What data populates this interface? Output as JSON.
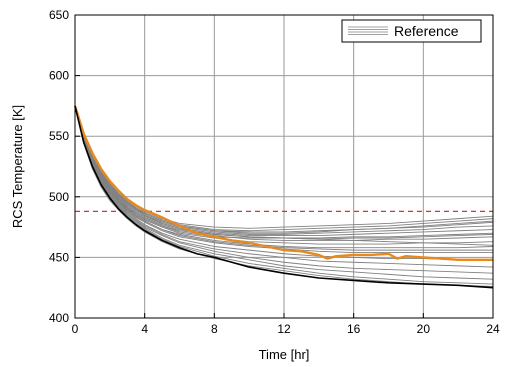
{
  "chart_data": {
    "type": "line",
    "xlabel": "Time [hr]",
    "ylabel": "RCS Temperature [K]",
    "xlim": [
      0,
      24
    ],
    "ylim": [
      400,
      650
    ],
    "xticks": [
      0,
      4,
      8,
      12,
      16,
      20,
      24
    ],
    "yticks": [
      400,
      450,
      500,
      550,
      600,
      650
    ],
    "grid": true,
    "legend": {
      "position": "top-right",
      "entries": [
        "Reference"
      ]
    },
    "colors": {
      "reference": "#808080",
      "highlight": "#e8891e",
      "lowest": "#000000",
      "threshold": "#e03030"
    },
    "threshold_line": {
      "y": 488,
      "style": "dashed"
    },
    "series": [
      {
        "name": "Reference",
        "x": [
          0,
          0.5,
          1,
          1.5,
          2,
          2.5,
          3,
          3.5,
          4,
          5,
          6,
          7,
          8,
          10,
          12,
          14,
          16,
          18,
          20,
          22,
          24
        ],
        "y": [
          575,
          550,
          533,
          520,
          509,
          501,
          495,
          490,
          485,
          478,
          474,
          471,
          469,
          467,
          466,
          465,
          464,
          463,
          462,
          461,
          460
        ]
      },
      {
        "x": [
          0,
          0.5,
          1,
          1.5,
          2,
          2.5,
          3,
          3.5,
          4,
          5,
          6,
          8,
          10,
          12,
          14,
          16,
          18,
          20,
          22,
          24
        ],
        "y": [
          575,
          550,
          533,
          521,
          511,
          503,
          497,
          492,
          488,
          482,
          478,
          475,
          474,
          475,
          476,
          477,
          478,
          480,
          482,
          484
        ]
      },
      {
        "x": [
          0,
          0.5,
          1,
          1.5,
          2,
          2.5,
          3,
          3.5,
          4,
          5,
          6,
          8,
          10,
          12,
          14,
          16,
          18,
          20,
          22,
          24
        ],
        "y": [
          575,
          550,
          533,
          520,
          510,
          502,
          496,
          491,
          487,
          481,
          477,
          473,
          472,
          473,
          474,
          475,
          476,
          478,
          480,
          482
        ]
      },
      {
        "x": [
          0,
          0.5,
          1,
          1.5,
          2,
          2.5,
          3,
          3.5,
          4,
          5,
          6,
          8,
          10,
          12,
          14,
          16,
          18,
          20,
          22,
          24
        ],
        "y": [
          575,
          549,
          532,
          519,
          509,
          501,
          495,
          490,
          486,
          480,
          476,
          472,
          471,
          471,
          472,
          473,
          474,
          475,
          477,
          479
        ]
      },
      {
        "x": [
          0,
          0.5,
          1,
          1.5,
          2,
          2.5,
          3,
          3.5,
          4,
          5,
          6,
          8,
          10,
          12,
          14,
          16,
          18,
          20,
          22,
          24
        ],
        "y": [
          575,
          549,
          532,
          519,
          508,
          500,
          494,
          489,
          485,
          479,
          475,
          471,
          469,
          469,
          470,
          471,
          472,
          473,
          475,
          476
        ]
      },
      {
        "x": [
          0,
          0.5,
          1,
          1.5,
          2,
          2.5,
          3,
          3.5,
          4,
          5,
          6,
          8,
          10,
          12,
          14,
          16,
          18,
          20,
          22,
          24
        ],
        "y": [
          575,
          549,
          531,
          518,
          507,
          499,
          493,
          488,
          484,
          478,
          474,
          470,
          468,
          468,
          468,
          469,
          470,
          471,
          472,
          473
        ]
      },
      {
        "x": [
          0,
          0.5,
          1,
          1.5,
          2,
          2.5,
          3,
          3.5,
          4,
          5,
          6,
          8,
          10,
          12,
          14,
          16,
          18,
          20,
          22,
          24
        ],
        "y": [
          575,
          548,
          531,
          517,
          507,
          499,
          492,
          487,
          483,
          477,
          473,
          469,
          467,
          466,
          466,
          467,
          467,
          468,
          469,
          470
        ]
      },
      {
        "x": [
          0,
          0.5,
          1,
          1.5,
          2,
          2.5,
          3,
          3.5,
          4,
          5,
          6,
          8,
          10,
          12,
          14,
          16,
          18,
          20,
          22,
          24
        ],
        "y": [
          575,
          548,
          530,
          517,
          506,
          498,
          491,
          486,
          482,
          476,
          472,
          468,
          465,
          464,
          464,
          464,
          465,
          465,
          466,
          467
        ]
      },
      {
        "x": [
          0,
          0.5,
          1,
          1.5,
          2,
          2.5,
          3,
          3.5,
          4,
          5,
          6,
          8,
          10,
          12,
          14,
          16,
          18,
          20,
          22,
          24
        ],
        "y": [
          575,
          548,
          530,
          516,
          505,
          497,
          490,
          485,
          481,
          475,
          470,
          466,
          463,
          462,
          461,
          461,
          461,
          462,
          462,
          463
        ]
      },
      {
        "x": [
          0,
          0.5,
          1,
          1.5,
          2,
          2.5,
          3,
          3.5,
          4,
          5,
          6,
          8,
          10,
          12,
          14,
          16,
          18,
          20,
          22,
          24
        ],
        "y": [
          575,
          547,
          529,
          515,
          504,
          496,
          489,
          484,
          480,
          473,
          469,
          464,
          461,
          459,
          458,
          458,
          458,
          458,
          458,
          459
        ]
      },
      {
        "x": [
          0,
          0.5,
          1,
          1.5,
          2,
          2.5,
          3,
          3.5,
          4,
          5,
          6,
          8,
          10,
          12,
          14,
          16,
          18,
          20,
          22,
          24
        ],
        "y": [
          575,
          547,
          528,
          514,
          503,
          495,
          488,
          483,
          479,
          472,
          467,
          462,
          459,
          457,
          455,
          454,
          454,
          454,
          454,
          454
        ]
      },
      {
        "x": [
          0,
          0.5,
          1,
          1.5,
          2,
          2.5,
          3,
          3.5,
          4,
          5,
          6,
          8,
          10,
          12,
          14,
          16,
          18,
          20,
          22,
          24
        ],
        "y": [
          575,
          546,
          527,
          513,
          502,
          494,
          487,
          482,
          477,
          470,
          465,
          459,
          456,
          453,
          451,
          450,
          449,
          449,
          448,
          448
        ]
      },
      {
        "x": [
          0,
          0.5,
          1,
          1.5,
          2,
          2.5,
          3,
          3.5,
          4,
          5,
          6,
          8,
          10,
          12,
          14,
          16,
          18,
          20,
          22,
          24
        ],
        "y": [
          575,
          546,
          526,
          512,
          501,
          493,
          486,
          481,
          476,
          469,
          463,
          457,
          453,
          450,
          447,
          446,
          445,
          444,
          443,
          442
        ]
      },
      {
        "x": [
          0,
          0.5,
          1,
          1.5,
          2,
          2.5,
          3,
          3.5,
          4,
          5,
          6,
          8,
          10,
          12,
          14,
          16,
          18,
          20,
          22,
          24
        ],
        "y": [
          575,
          545,
          525,
          511,
          500,
          492,
          485,
          480,
          475,
          468,
          462,
          455,
          450,
          446,
          443,
          441,
          440,
          439,
          438,
          437
        ]
      },
      {
        "x": [
          0,
          0.5,
          1,
          1.5,
          2,
          2.5,
          3,
          3.5,
          4,
          5,
          6,
          8,
          10,
          12,
          14,
          16,
          18,
          20,
          22,
          24
        ],
        "y": [
          575,
          545,
          525,
          510,
          499,
          491,
          484,
          479,
          474,
          466,
          460,
          453,
          448,
          443,
          440,
          438,
          436,
          434,
          433,
          432
        ]
      },
      {
        "x": [
          0,
          0.5,
          1,
          1.5,
          2,
          2.5,
          3,
          3.5,
          4,
          5,
          6,
          8,
          10,
          12,
          14,
          16,
          18,
          20,
          22,
          24
        ],
        "y": [
          575,
          544,
          524,
          509,
          498,
          490,
          483,
          478,
          473,
          465,
          459,
          451,
          445,
          441,
          437,
          434,
          432,
          430,
          429,
          428
        ]
      },
      {
        "x": [
          0,
          0.5,
          1,
          1.5,
          2,
          2.5,
          3,
          3.5,
          4,
          5,
          6,
          8,
          10,
          12,
          14,
          16,
          18,
          20,
          22,
          24
        ],
        "y": [
          575,
          544,
          523,
          508,
          497,
          489,
          482,
          476,
          471,
          463,
          457,
          449,
          443,
          439,
          435,
          432,
          430,
          428,
          427,
          426
        ]
      },
      {
        "x": [
          0,
          0.5,
          1,
          1.5,
          2,
          2.5,
          3,
          3.5,
          4,
          5,
          6,
          8,
          10,
          12,
          14,
          16,
          18,
          20,
          22,
          24
        ],
        "y": [
          575,
          549,
          532,
          519,
          509,
          501,
          495,
          490,
          486,
          480,
          476,
          472,
          470,
          470,
          471,
          473,
          474,
          476,
          478,
          480
        ]
      },
      {
        "x": [
          0,
          0.5,
          1,
          1.5,
          2,
          2.5,
          3,
          3.5,
          4,
          5,
          6,
          8,
          10,
          12,
          14,
          16,
          18,
          20,
          22,
          24
        ],
        "y": [
          575,
          548,
          530,
          516,
          506,
          498,
          491,
          486,
          482,
          476,
          471,
          467,
          466,
          466,
          465,
          466,
          466,
          467,
          468,
          469
        ]
      },
      {
        "x": [
          0,
          0.5,
          1,
          1.5,
          2,
          2.5,
          3,
          3.5,
          4,
          5,
          6,
          8,
          10,
          12,
          14,
          16,
          18,
          20,
          22,
          24
        ],
        "y": [
          575,
          547,
          528,
          514,
          504,
          496,
          489,
          484,
          480,
          473,
          468,
          463,
          460,
          458,
          457,
          456,
          456,
          456,
          456,
          456
        ]
      },
      {
        "x": [
          0,
          0.5,
          1,
          1.5,
          2,
          2.5,
          3,
          3.5,
          4,
          4.5,
          5,
          6,
          7,
          8,
          9,
          10,
          11,
          12,
          13,
          14,
          14.5,
          15,
          16,
          17,
          18,
          18.5,
          19,
          20,
          21,
          22,
          23,
          24
        ],
        "y": [
          575,
          552,
          536,
          523,
          513,
          505,
          498,
          493,
          489,
          486,
          483,
          476,
          470,
          467,
          464,
          462,
          459,
          456,
          455,
          452,
          449,
          451,
          452,
          452,
          453,
          449,
          451,
          450,
          449,
          448,
          448,
          448
        ]
      },
      {
        "x": [
          0,
          0.5,
          1,
          1.5,
          2,
          2.5,
          3,
          3.5,
          4,
          5,
          6,
          7,
          8,
          9,
          10,
          12,
          14,
          16,
          18,
          20,
          22,
          24
        ],
        "y": [
          575,
          545,
          525,
          510,
          499,
          490,
          483,
          477,
          472,
          464,
          458,
          453,
          450,
          446,
          442,
          437,
          433,
          431,
          429,
          428,
          427,
          425
        ]
      }
    ]
  }
}
